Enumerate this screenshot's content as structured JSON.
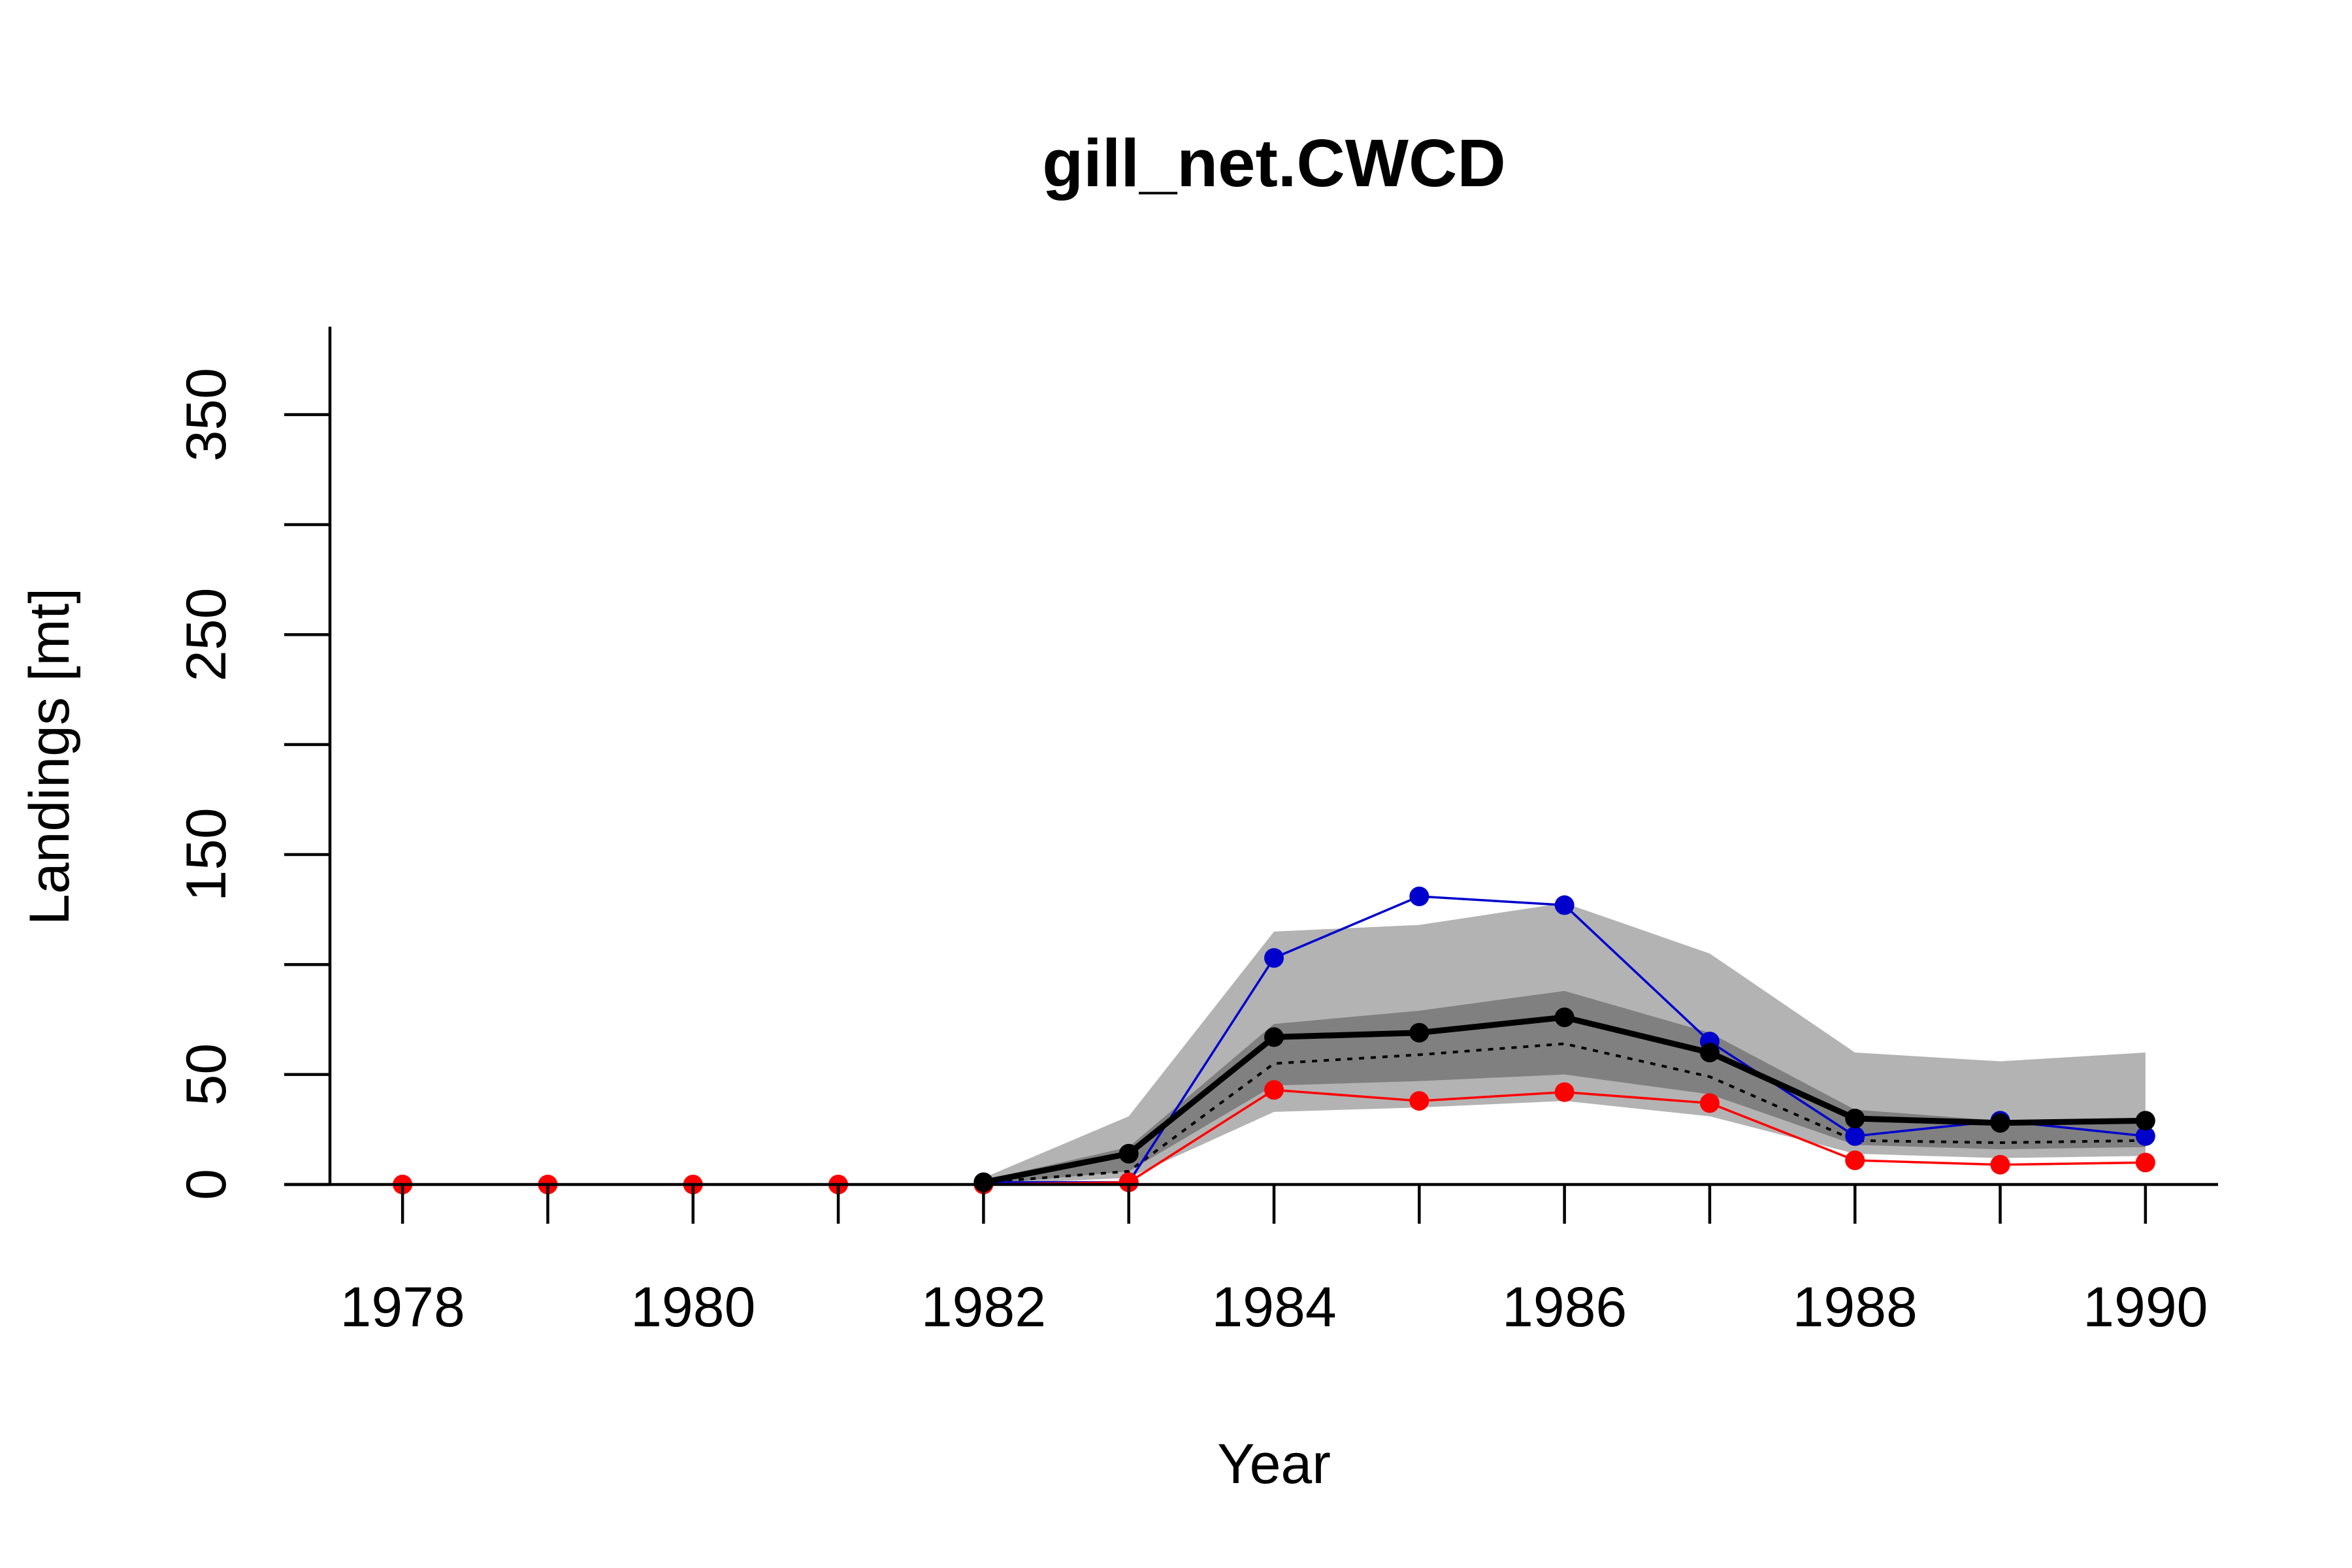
{
  "chart_data": {
    "type": "line",
    "title": "gill_net.CWCD",
    "xlabel": "Year",
    "ylabel": "Landings [mt]",
    "x": [
      1978,
      1979,
      1980,
      1981,
      1982,
      1983,
      1984,
      1985,
      1986,
      1987,
      1988,
      1989,
      1990
    ],
    "xlim": [
      1977.5,
      1990.5
    ],
    "ylim": [
      0,
      390
    ],
    "xticks": [
      "1978",
      "1980",
      "1982",
      "1984",
      "1986",
      "1988",
      "1990"
    ],
    "yticks": [
      "0",
      "50",
      "150",
      "250",
      "350"
    ],
    "yticks_unlabeled": [
      100,
      200,
      300
    ],
    "bands": [
      {
        "color": "#b3b3b3",
        "x": [
          1982,
          1983,
          1984,
          1985,
          1986,
          1987,
          1988,
          1989,
          1990
        ],
        "lower": [
          0,
          3,
          33,
          35,
          38,
          31,
          14,
          12,
          13
        ],
        "upper": [
          3,
          31,
          115,
          118,
          128,
          105,
          60,
          56,
          60
        ]
      },
      {
        "color": "#808080",
        "x": [
          1982,
          1983,
          1984,
          1985,
          1986,
          1987,
          1988,
          1989,
          1990
        ],
        "lower": [
          0,
          6,
          45,
          47,
          50,
          41,
          18,
          16,
          17
        ],
        "upper": [
          2,
          17,
          73,
          79,
          88,
          69,
          34,
          29,
          30
        ]
      }
    ],
    "series": [
      {
        "color": "#000000",
        "style": "dotted",
        "markers": false,
        "x": [
          1982,
          1983,
          1984,
          1985,
          1986,
          1987,
          1988,
          1989,
          1990
        ],
        "values": [
          1,
          6,
          55,
          59,
          64,
          49,
          20,
          19,
          20
        ]
      },
      {
        "color": "#0000cd",
        "style": "thin",
        "markers": true,
        "x": [
          1982,
          1983,
          1984,
          1985,
          1986,
          1987,
          1988,
          1989,
          1990
        ],
        "values": [
          1,
          1,
          103,
          131,
          127,
          65,
          22,
          29,
          22
        ]
      },
      {
        "color": "#ff0000",
        "style": "thin",
        "markers": true,
        "x": [
          1978,
          1979,
          1980,
          1981,
          1982,
          1983,
          1984,
          1985,
          1986,
          1987,
          1988,
          1989,
          1990
        ],
        "values": [
          0,
          0,
          0,
          0,
          0,
          1,
          43,
          38,
          42,
          37,
          11,
          9,
          10
        ]
      },
      {
        "color": "#000000",
        "style": "thick",
        "markers": true,
        "x": [
          1982,
          1983,
          1984,
          1985,
          1986,
          1987,
          1988,
          1989,
          1990
        ],
        "values": [
          1,
          14,
          67,
          69,
          76,
          60,
          30,
          28,
          29
        ]
      }
    ]
  }
}
